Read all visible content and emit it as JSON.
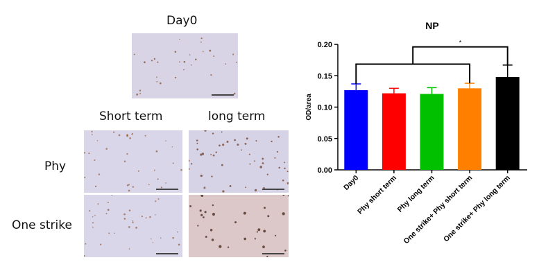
{
  "panel": {
    "day0_label": "Day0",
    "col_labels": [
      "Short term",
      "long term"
    ],
    "row_labels": [
      "Phy",
      "One strike"
    ]
  },
  "chart_data": {
    "type": "bar",
    "title": "NP",
    "xlabel": "",
    "ylabel": "OD/area",
    "ylim": [
      0,
      0.2
    ],
    "yticks": [
      "0.00",
      "0.05",
      "0.10",
      "0.15",
      "0.20"
    ],
    "categories": [
      "Day0",
      "Phy short term",
      "Phy long term",
      "One strike+ Phy short term",
      "One strike+ Phy long term"
    ],
    "values": [
      0.127,
      0.122,
      0.121,
      0.13,
      0.148
    ],
    "errors": [
      0.01,
      0.008,
      0.01,
      0.008,
      0.019
    ],
    "colors": [
      "#0000ff",
      "#ff0000",
      "#00c000",
      "#ff8000",
      "#000000"
    ],
    "significance": {
      "label": "*",
      "group": [
        0,
        3
      ],
      "vs": 4
    }
  }
}
